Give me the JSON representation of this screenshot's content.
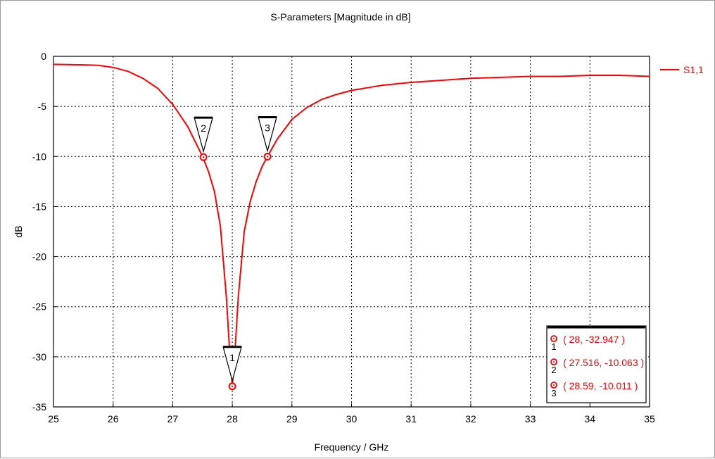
{
  "chart_data": {
    "type": "line",
    "title": "S-Parameters [Magnitude in dB]",
    "xlabel": "Frequency / GHz",
    "ylabel": "dB",
    "xlim": [
      25,
      35
    ],
    "ylim": [
      -35,
      0
    ],
    "xticks": [
      25,
      26,
      27,
      28,
      29,
      30,
      31,
      32,
      33,
      34,
      35
    ],
    "yticks": [
      0,
      -5,
      -10,
      -15,
      -20,
      -25,
      -30,
      -35
    ],
    "grid": true,
    "legend_position": "top-right",
    "series": [
      {
        "name": "S1,1",
        "color": "#ff0000",
        "x": [
          25,
          25.5,
          25.75,
          26,
          26.25,
          26.5,
          26.75,
          27,
          27.25,
          27.5,
          27.6,
          27.7,
          27.8,
          27.9,
          27.95,
          28,
          28.05,
          28.1,
          28.2,
          28.3,
          28.4,
          28.5,
          28.6,
          28.75,
          29,
          29.25,
          29.5,
          29.75,
          30,
          30.5,
          31,
          31.5,
          32,
          32.5,
          33,
          33.5,
          34,
          34.5,
          35
        ],
        "y": [
          -0.8,
          -0.85,
          -0.9,
          -1.1,
          -1.5,
          -2.2,
          -3.2,
          -4.8,
          -7.0,
          -10.0,
          -11.5,
          -13.5,
          -17.0,
          -24.0,
          -29.0,
          -32.9,
          -29.0,
          -24.0,
          -17.5,
          -14.5,
          -12.5,
          -11.0,
          -9.9,
          -8.3,
          -6.3,
          -5.1,
          -4.3,
          -3.8,
          -3.4,
          -2.9,
          -2.6,
          -2.4,
          -2.2,
          -2.1,
          -2.0,
          -2.0,
          -1.9,
          -1.9,
          -2.0
        ]
      }
    ],
    "markers": [
      {
        "id": "1",
        "x": 28,
        "y": -32.947,
        "label": "( 28, -32.947 )"
      },
      {
        "id": "2",
        "x": 27.516,
        "y": -10.063,
        "label": "( 27.516, -10.063 )"
      },
      {
        "id": "3",
        "x": 28.59,
        "y": -10.011,
        "label": "( 28.59, -10.011 )"
      }
    ],
    "marker_box_color": "#ff0000",
    "grid_color": "#000000"
  }
}
